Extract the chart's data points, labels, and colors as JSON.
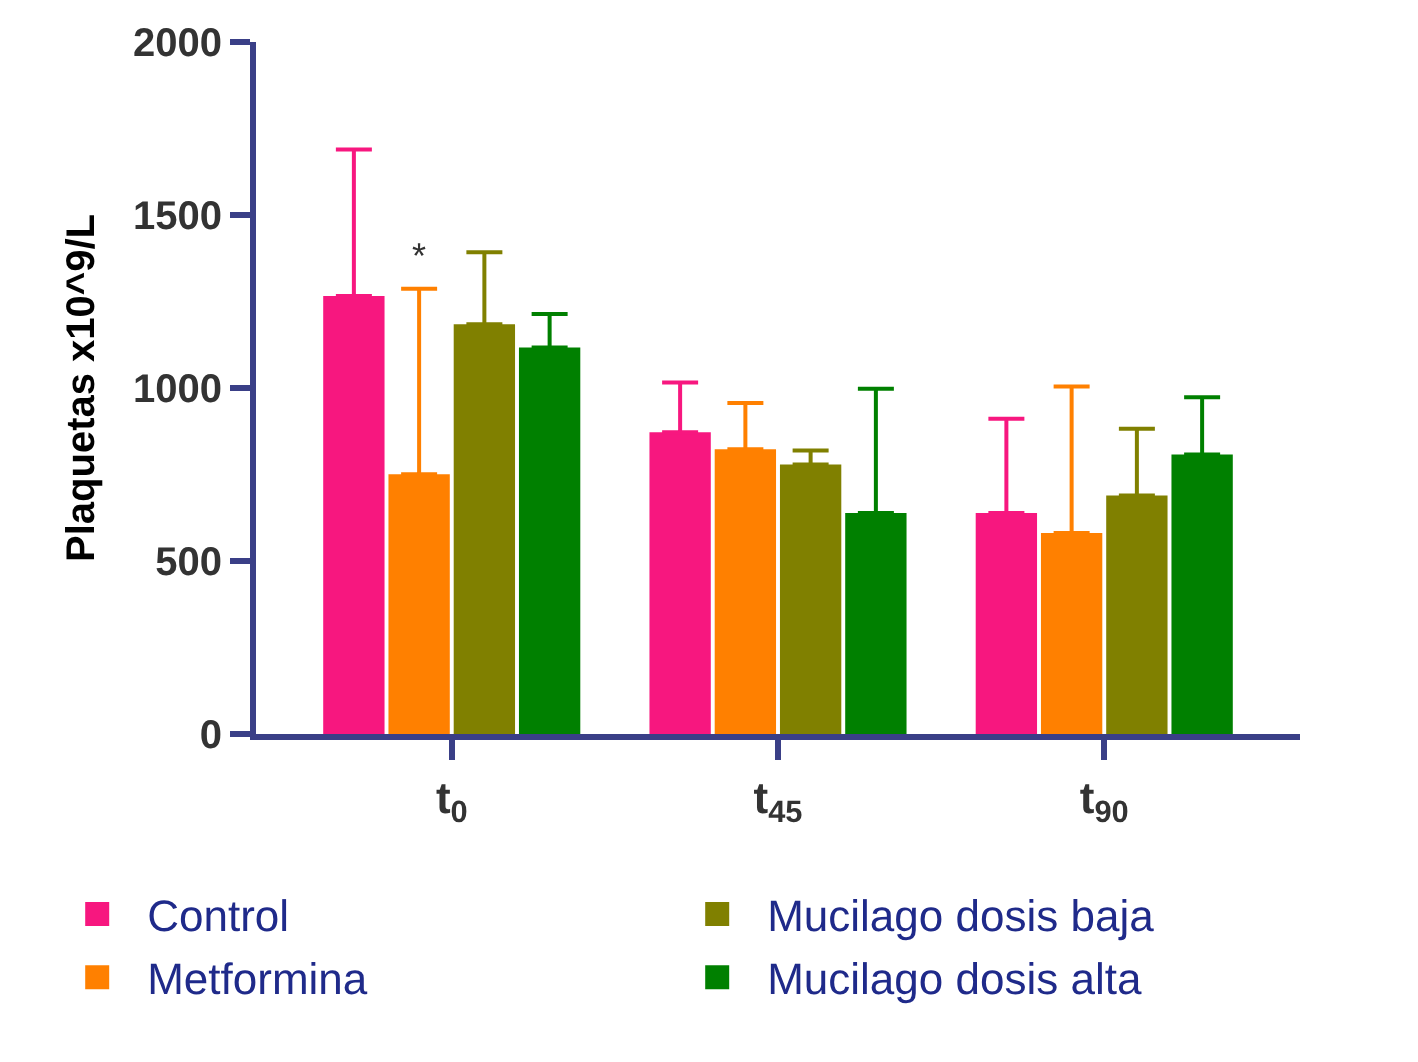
{
  "chart_data": {
    "type": "bar",
    "ylabel": "Plaquetas x10^9/L",
    "categories": [
      "t$_{0}$",
      "t$_{45}$",
      "t$_{90}$"
    ],
    "series": [
      {
        "name": "Control",
        "color": "#f7177f",
        "values": [
          1266,
          872,
          639
        ],
        "errors": [
          [
            1266,
            1689
          ],
          [
            872,
            1016
          ],
          [
            639,
            911
          ]
        ]
      },
      {
        "name": "Metformina",
        "color": "#ff8000",
        "values": [
          751,
          823,
          581
        ],
        "errors": [
          [
            751,
            1287
          ],
          [
            823,
            957
          ],
          [
            581,
            1004
          ]
        ]
      },
      {
        "name": "Mucilago dosis baja",
        "color": "#808000",
        "values": [
          1184,
          779,
          689
        ],
        "errors": [
          [
            1184,
            1392
          ],
          [
            779,
            819
          ],
          [
            689,
            882
          ]
        ]
      },
      {
        "name": "Mucilago dosis alta",
        "color": "#008000",
        "values": [
          1117,
          639,
          808
        ],
        "errors": [
          [
            1117,
            1214
          ],
          [
            639,
            998
          ],
          [
            808,
            973
          ]
        ]
      }
    ],
    "annotations": [
      "*"
    ],
    "ylim": [
      0,
      2000
    ],
    "yticks": [
      0,
      500,
      1000,
      1500,
      2000
    ],
    "legend": "bottom"
  }
}
